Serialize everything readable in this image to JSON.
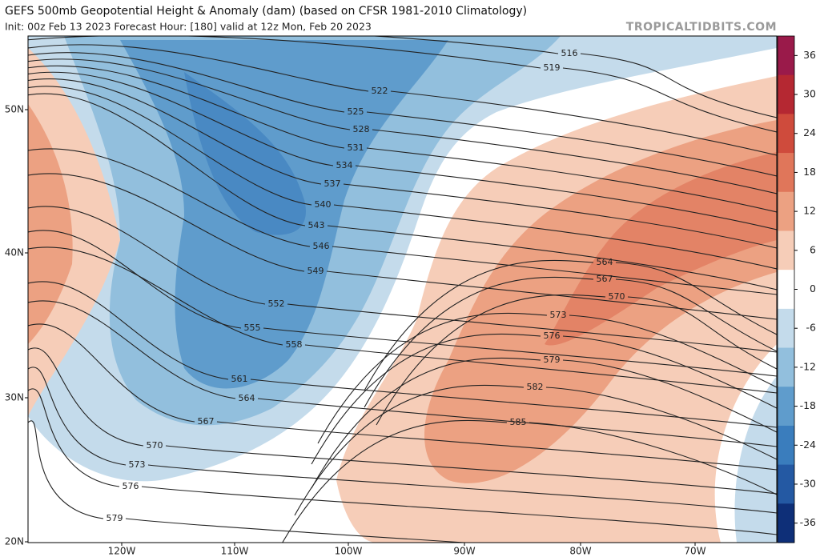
{
  "header": {
    "title": "GEFS 500mb Geopotential Height & Anomaly (dam) (based on CFSR 1981-2010 Climatology)",
    "subtitle": "Init: 00z Feb 13 2023   Forecast Hour: [180]   valid at 12z Mon, Feb 20 2023",
    "source": "TROPICALTIDBITS.COM"
  },
  "map": {
    "lat_labels": [
      "50N",
      "40N",
      "30N",
      "20N"
    ],
    "lon_labels": [
      "120W",
      "110W",
      "100W",
      "90W",
      "80W",
      "70W"
    ],
    "contour_labels": [
      516,
      519,
      522,
      525,
      528,
      531,
      534,
      537,
      540,
      543,
      546,
      549,
      552,
      555,
      558,
      561,
      564,
      567,
      570,
      573,
      576,
      579,
      564,
      567,
      570,
      573,
      576,
      579,
      582,
      585
    ]
  },
  "colorbar": {
    "lim": [
      -39,
      39
    ],
    "ticks": [
      36,
      30,
      24,
      18,
      12,
      6,
      0,
      -6,
      -12,
      -18,
      -24,
      -30,
      -36
    ],
    "colors": [
      "#9a1a4a",
      "#b52832",
      "#cf4b3c",
      "#e0765a",
      "#eca182",
      "#f6cdb8",
      "#ffffff",
      "#c4dbeb",
      "#92bfdd",
      "#5f9ccc",
      "#3a7dbd",
      "#2459a3",
      "#0e2f78"
    ]
  }
}
